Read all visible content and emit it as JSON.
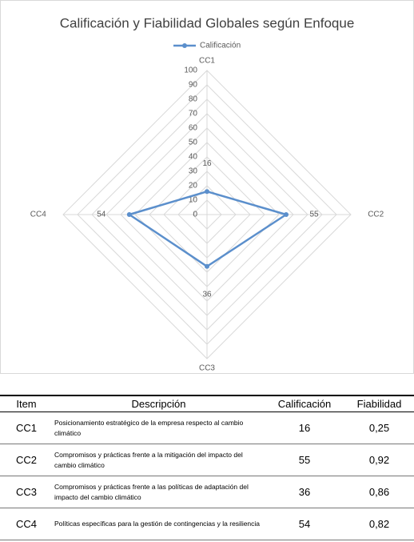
{
  "chart_data": {
    "type": "radar",
    "title": "Calificación y Fiabilidad Globales según Enfoque",
    "categories": [
      "CC1",
      "CC2",
      "CC3",
      "CC4"
    ],
    "series": [
      {
        "name": "Calificación",
        "color": "#5b8fcc",
        "values": [
          16,
          55,
          36,
          54
        ]
      }
    ],
    "ylim": [
      0,
      100
    ],
    "yticks": [
      0,
      10,
      20,
      30,
      40,
      50,
      60,
      70,
      80,
      90,
      100
    ],
    "grid": true,
    "legend": "top"
  },
  "table": {
    "headers": [
      "Item",
      "Descripción",
      "Calificación",
      "Fiabilidad"
    ],
    "rows": [
      [
        "CC1",
        "Posicionamiento estratégico de la empresa respecto al cambio climático",
        "16",
        "0,25"
      ],
      [
        "CC2",
        "Compromisos y prácticas frente a la mitigación del impacto del cambio climático",
        "55",
        "0,92"
      ],
      [
        "CC3",
        "Compromisos y prácticas frente a las políticas de adaptación del impacto del cambio climático",
        "36",
        "0,86"
      ],
      [
        "CC4",
        "Políticas específicas para la gestión de contingencias y la resiliencia",
        "54",
        "0,82"
      ]
    ]
  }
}
